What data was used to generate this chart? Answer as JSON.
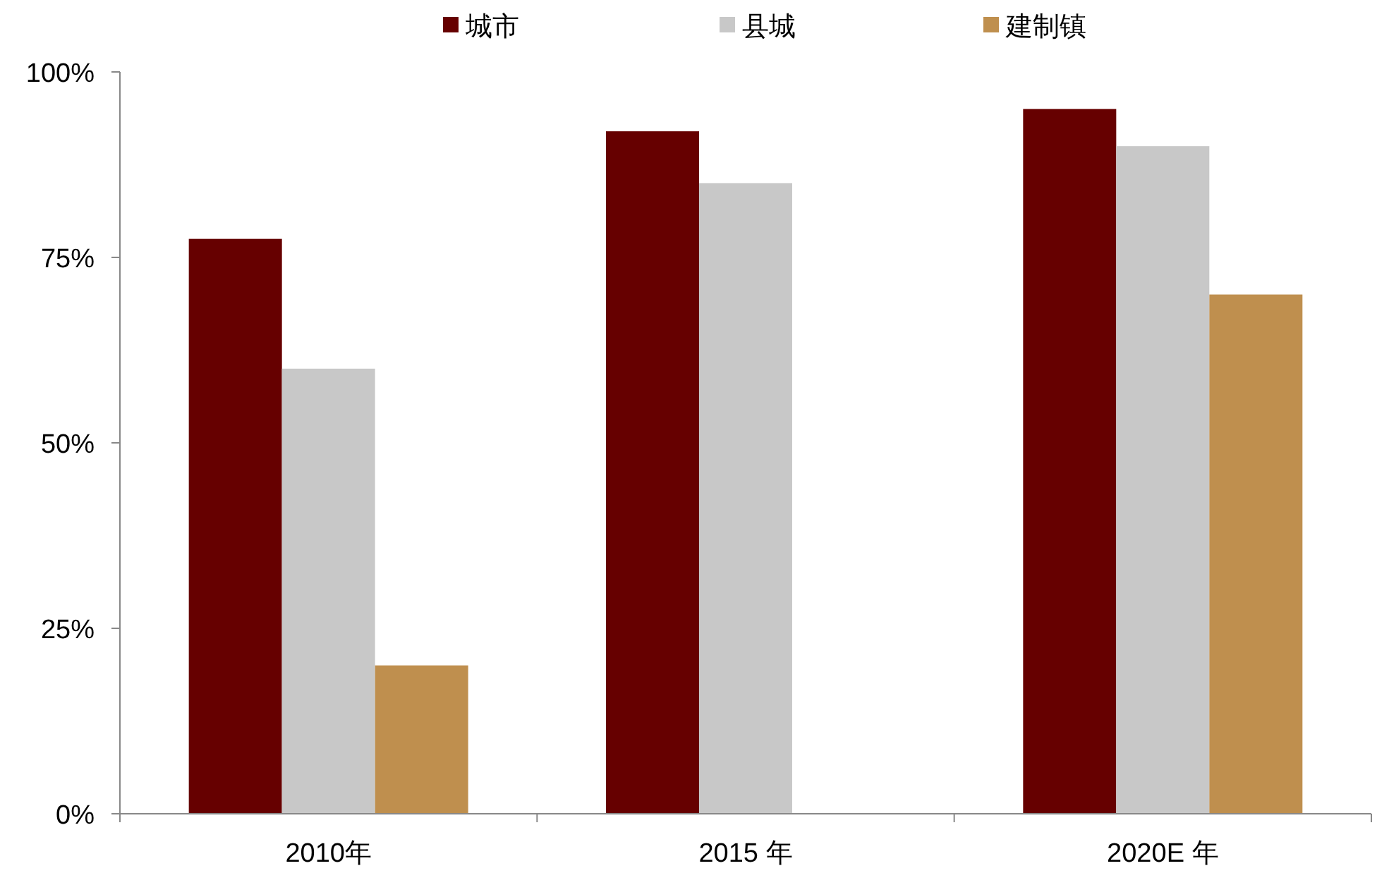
{
  "chart_data": {
    "type": "bar",
    "categories": [
      "2010年",
      "2015 年",
      "2020E 年"
    ],
    "series": [
      {
        "name": "城市",
        "color": "#660000",
        "values": [
          77.5,
          92,
          95
        ]
      },
      {
        "name": "县城",
        "color": "#c8c8c8",
        "values": [
          60,
          85,
          90
        ]
      },
      {
        "name": "建制镇",
        "color": "#bf8f4e",
        "values": [
          20,
          null,
          70
        ]
      }
    ],
    "ylim": [
      0,
      100
    ],
    "yticks": [
      {
        "value": 0,
        "label": "0%"
      },
      {
        "value": 25,
        "label": "25%"
      },
      {
        "value": 50,
        "label": "50%"
      },
      {
        "value": 75,
        "label": "75%"
      },
      {
        "value": 100,
        "label": "100%"
      }
    ],
    "legend": "top",
    "grid": false
  }
}
